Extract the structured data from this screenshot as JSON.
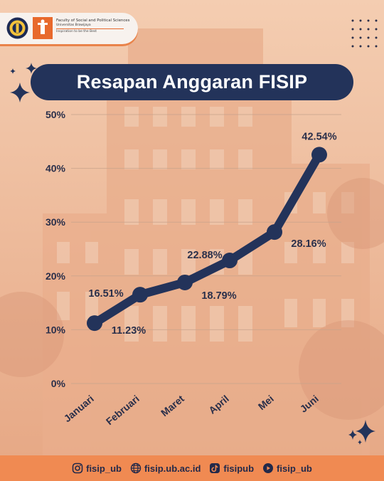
{
  "header": {
    "faculty_line": "Faculty of Social and Political Sciences",
    "university_line": "Universitas Brawijaya",
    "tagline": "Inspiration to be the Best"
  },
  "title": "Resapan Anggaran FISIP",
  "colors": {
    "navy": "#23335a",
    "orange": "#f08a52",
    "background": "#f1c4a4"
  },
  "chart_data": {
    "type": "line",
    "title": "Resapan Anggaran FISIP",
    "categories": [
      "Januari",
      "Februari",
      "Maret",
      "April",
      "Mei",
      "Juni"
    ],
    "values": [
      11.23,
      16.51,
      18.79,
      22.88,
      28.16,
      42.54
    ],
    "data_labels": [
      "11.23%",
      "16.51%",
      "18.79%",
      "22.88%",
      "28.16%",
      "42.54%"
    ],
    "yticks": [
      "0%",
      "10%",
      "20%",
      "30%",
      "40%",
      "50%"
    ],
    "ylim": [
      0,
      50
    ],
    "grid": true,
    "legend": "none"
  },
  "footer": {
    "instagram": "fisip_ub",
    "website": "fisip.ub.ac.id",
    "tiktok": "fisipub",
    "youtube": "fisip_ub"
  }
}
